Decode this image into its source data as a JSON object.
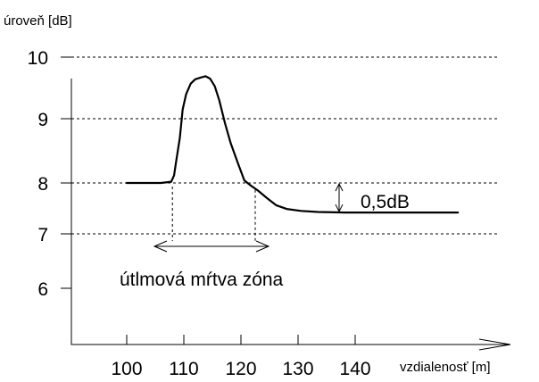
{
  "chart_data": {
    "type": "line",
    "ylabel": "úroveň [dB]",
    "xlabel": "vzdialenosť [m]",
    "ylim": [
      5.0,
      10.0
    ],
    "xlim": [
      100,
      140
    ],
    "y_ticks": [
      10,
      9,
      8,
      7,
      6
    ],
    "x_ticks": [
      100,
      110,
      120,
      130,
      140
    ],
    "grid": true,
    "series": [
      {
        "x": [
          100,
          106,
          107.8,
          108.3,
          108.6,
          109.3,
          109.8,
          110.4,
          111.2,
          112,
          113,
          113.8,
          114.6,
          115.4,
          116.2,
          117.2,
          118.2,
          119.5,
          120.6,
          121.6,
          123,
          124.6,
          126.2,
          128,
          130.5,
          133.5,
          138,
          145,
          158
        ],
        "y": [
          8.0,
          8.0,
          8.02,
          8.12,
          8.3,
          8.7,
          9.15,
          9.4,
          9.57,
          9.64,
          9.67,
          9.69,
          9.65,
          9.53,
          9.3,
          8.93,
          8.62,
          8.3,
          8.04,
          7.96,
          7.85,
          7.7,
          7.56,
          7.49,
          7.45,
          7.43,
          7.42,
          7.42,
          7.42
        ]
      }
    ],
    "annotations": [
      {
        "text": "0,5dB"
      },
      {
        "text": "útlmová mŕtva zóna"
      }
    ]
  }
}
